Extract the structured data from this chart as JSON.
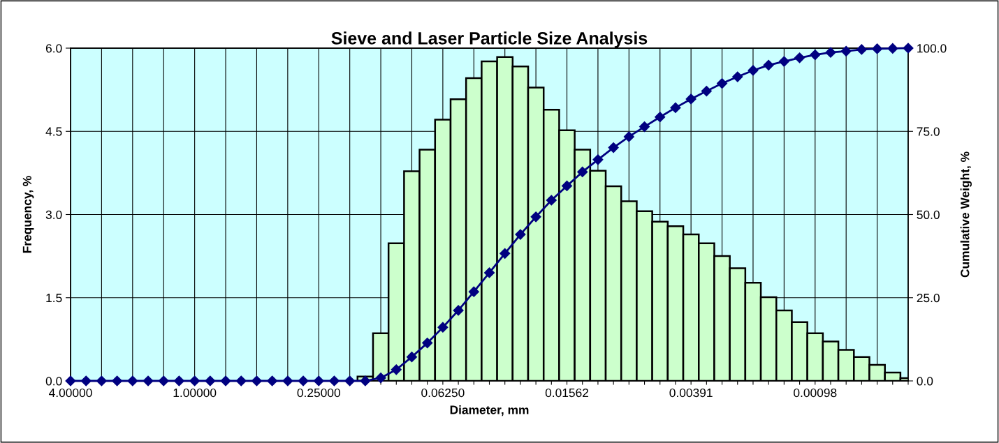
{
  "chart_data": {
    "type": "bar",
    "title": "Sieve and Laser Particle Size Analysis",
    "xlabel": "Diameter, mm",
    "ylabel": "Frequency, %",
    "y2label": "Cumulative Weight, %",
    "categories": [
      "4.00000",
      null,
      null,
      null,
      null,
      null,
      null,
      null,
      "1.00000",
      null,
      null,
      null,
      null,
      null,
      null,
      null,
      "0.25000",
      null,
      null,
      null,
      null,
      null,
      null,
      null,
      "0.06250",
      null,
      null,
      null,
      null,
      null,
      null,
      null,
      "0.01562",
      null,
      null,
      null,
      null,
      null,
      null,
      null,
      "0.00391",
      null,
      null,
      null,
      null,
      null,
      null,
      null,
      "0.00098",
      null,
      null,
      null,
      null,
      null,
      null
    ],
    "series": [
      {
        "color": "#ccffcc",
        "values": [
          null,
          null,
          null,
          null,
          null,
          null,
          null,
          null,
          null,
          null,
          null,
          null,
          null,
          null,
          null,
          null,
          null,
          null,
          null,
          0.08,
          0.86,
          2.48,
          3.78,
          4.17,
          4.71,
          5.08,
          5.46,
          5.76,
          5.84,
          5.67,
          5.29,
          4.89,
          4.52,
          4.17,
          3.79,
          3.51,
          3.24,
          3.06,
          2.87,
          2.79,
          2.64,
          2.48,
          2.25,
          2.03,
          1.77,
          1.51,
          1.27,
          1.06,
          0.86,
          0.71,
          0.56,
          0.43,
          0.29,
          0.15,
          0.05
        ]
      },
      {
        "type": "line",
        "axis": "y2",
        "color": "#000080",
        "marker": "diamond",
        "line_style": "solid",
        "values": [
          0,
          0,
          0,
          0,
          0,
          0,
          0,
          0,
          0,
          0,
          0,
          0,
          0,
          0,
          0,
          0,
          0,
          0,
          0,
          0,
          0.9,
          3.4,
          7.2,
          11.4,
          16.1,
          21.2,
          26.8,
          32.5,
          38.3,
          44.0,
          49.3,
          54.3,
          58.6,
          62.8,
          66.5,
          70.1,
          73.4,
          76.4,
          79.3,
          82.1,
          84.7,
          87.1,
          89.4,
          91.4,
          93.3,
          94.9,
          96.0,
          97.1,
          98.0,
          98.7,
          99.1,
          99.6,
          99.8,
          99.9,
          100
        ]
      }
    ],
    "ylim": [
      0,
      6
    ],
    "yticks": [
      {
        "value": 0,
        "label": "0.0"
      },
      {
        "value": 1.5,
        "label": "1.5"
      },
      {
        "value": 3,
        "label": "3.0"
      },
      {
        "value": 4.5,
        "label": "4.5"
      },
      {
        "value": 6,
        "label": "6.0"
      }
    ],
    "y2lim": [
      0,
      100
    ],
    "y2ticks": [
      {
        "value": 0,
        "label": "0.0"
      },
      {
        "value": 25,
        "label": "25.0"
      },
      {
        "value": 50,
        "label": "50.0"
      },
      {
        "value": 75,
        "label": "75.0"
      },
      {
        "value": 100,
        "label": "100.0"
      }
    ],
    "grid": true
  }
}
